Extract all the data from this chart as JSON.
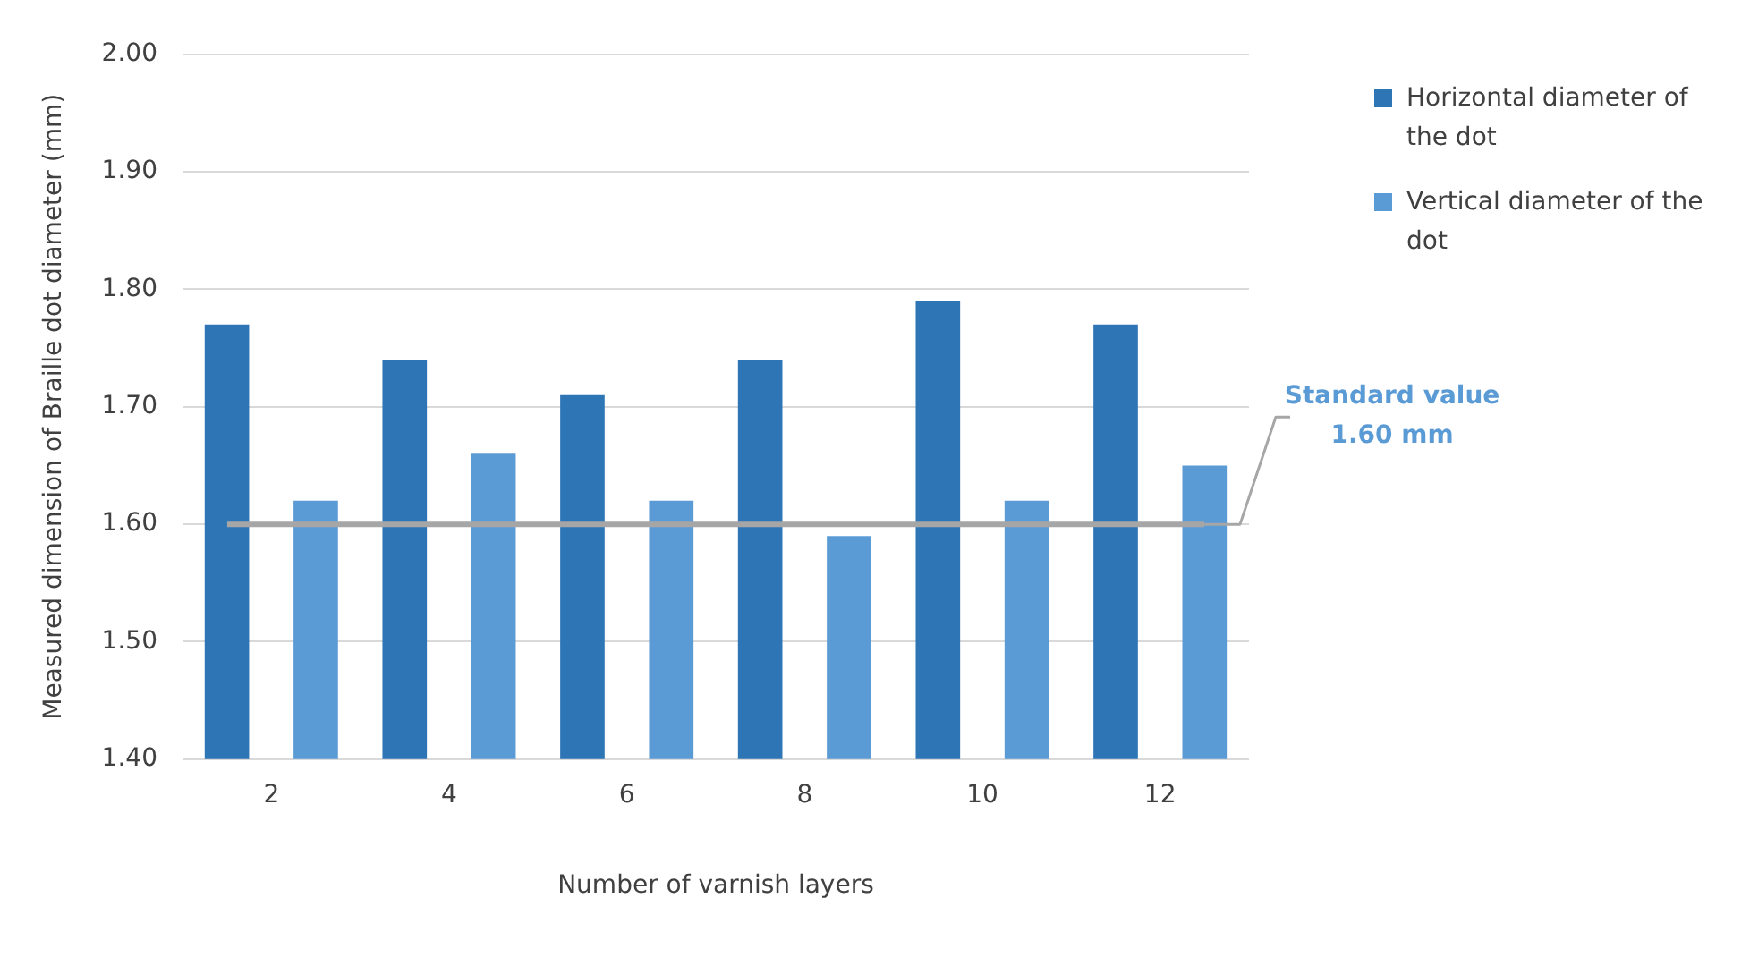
{
  "chart_data": {
    "type": "bar",
    "xlabel": "Number of varnish layers",
    "ylabel": "Measured dimension of Braille dot diameter (mm)",
    "categories": [
      "2",
      "4",
      "6",
      "8",
      "10",
      "12"
    ],
    "series": [
      {
        "name": "Horizontal diameter of the dot",
        "color": "#2e75b6",
        "values": [
          1.77,
          1.74,
          1.71,
          1.74,
          1.79,
          1.77
        ]
      },
      {
        "name": "Vertical diameter of the dot",
        "color": "#5b9bd5",
        "values": [
          1.62,
          1.66,
          1.62,
          1.59,
          1.62,
          1.65
        ]
      }
    ],
    "ylim": [
      1.4,
      2.0
    ],
    "yticks": [
      {
        "value": 1.4,
        "label": "1.40"
      },
      {
        "value": 1.5,
        "label": "1.50"
      },
      {
        "value": 1.6,
        "label": "1.60"
      },
      {
        "value": 1.7,
        "label": "1.70"
      },
      {
        "value": 1.8,
        "label": "1.80"
      },
      {
        "value": 1.9,
        "label": "1.90"
      },
      {
        "value": 2.0,
        "label": "2.00"
      }
    ],
    "grid": "y",
    "legend": "right",
    "ref_lines": [
      {
        "axis": "y",
        "value": 1.6,
        "label": "Standard value 1.60 mm",
        "color": "#a6a6a6"
      }
    ]
  }
}
